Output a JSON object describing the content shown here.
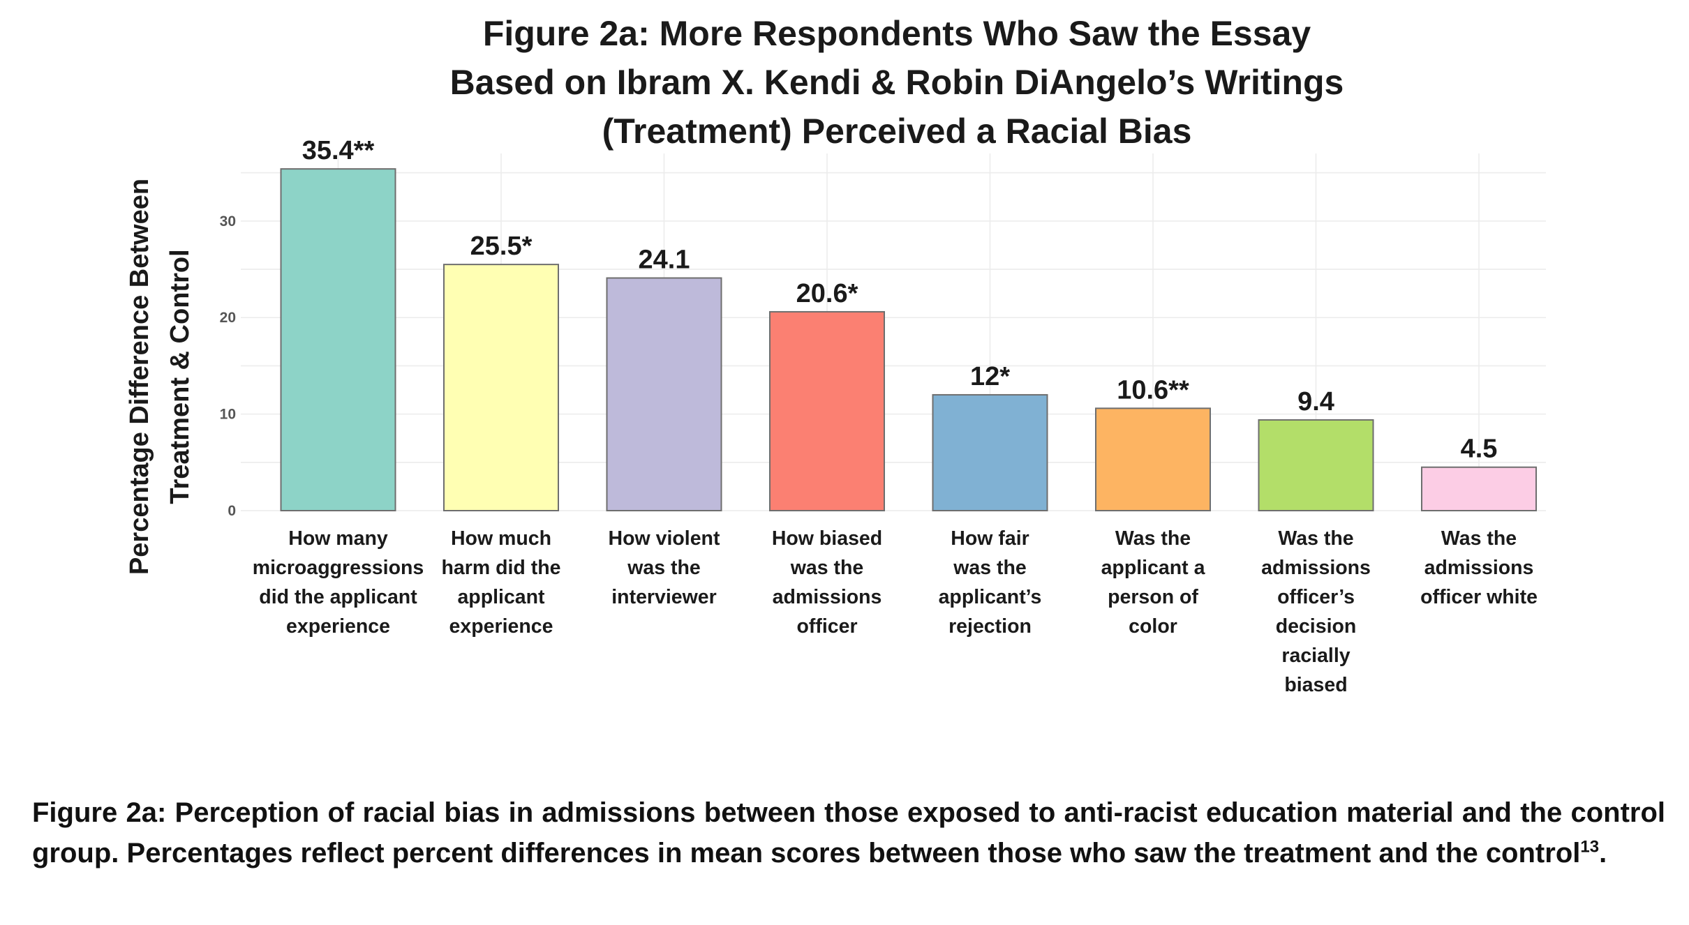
{
  "chart_data": {
    "type": "bar",
    "title_lines": [
      "Figure 2a: More Respondents Who Saw the Essay",
      "Based on Ibram X. Kendi & Robin DiAngelo’s Writings",
      "(Treatment) Perceived a Racial Bias"
    ],
    "ylabel_lines": [
      "Percentage Difference Between",
      "Treatment & Control"
    ],
    "xlabel": "",
    "ylim": [
      0,
      37
    ],
    "yticks": [
      0,
      10,
      20,
      30
    ],
    "grid": true,
    "categories": [
      [
        "How many",
        "microaggressions",
        "did the applicant",
        "experience"
      ],
      [
        "How much",
        "harm did the",
        "applicant",
        "experience"
      ],
      [
        "How violent",
        "was the",
        "interviewer"
      ],
      [
        "How biased",
        "was the",
        "admissions",
        "officer"
      ],
      [
        "How fair",
        "was the",
        "applicant’s",
        "rejection"
      ],
      [
        "Was the",
        "applicant a",
        "person of",
        "color"
      ],
      [
        "Was the",
        "admissions",
        "officer’s",
        "decision",
        "racially",
        "biased"
      ],
      [
        "Was the",
        "admissions",
        "officer white"
      ]
    ],
    "values": [
      35.4,
      25.5,
      24.1,
      20.6,
      12,
      10.6,
      9.4,
      4.5
    ],
    "value_labels": [
      "35.4**",
      "25.5*",
      "24.1",
      "20.6*",
      "12*",
      "10.6**",
      "9.4",
      "4.5"
    ],
    "colors": [
      "#8DD3C7",
      "#FFFFB3",
      "#BEBADA",
      "#FB8072",
      "#80B1D3",
      "#FDB462",
      "#B3DE69",
      "#FCCDE5"
    ]
  },
  "caption": {
    "text": "Figure 2a: Perception of racial bias in admissions between those exposed to anti-racist education material and the control group. Percentages reflect percent differences in mean scores between those who saw the treatment and the control",
    "footnote": "13",
    "end": "."
  }
}
